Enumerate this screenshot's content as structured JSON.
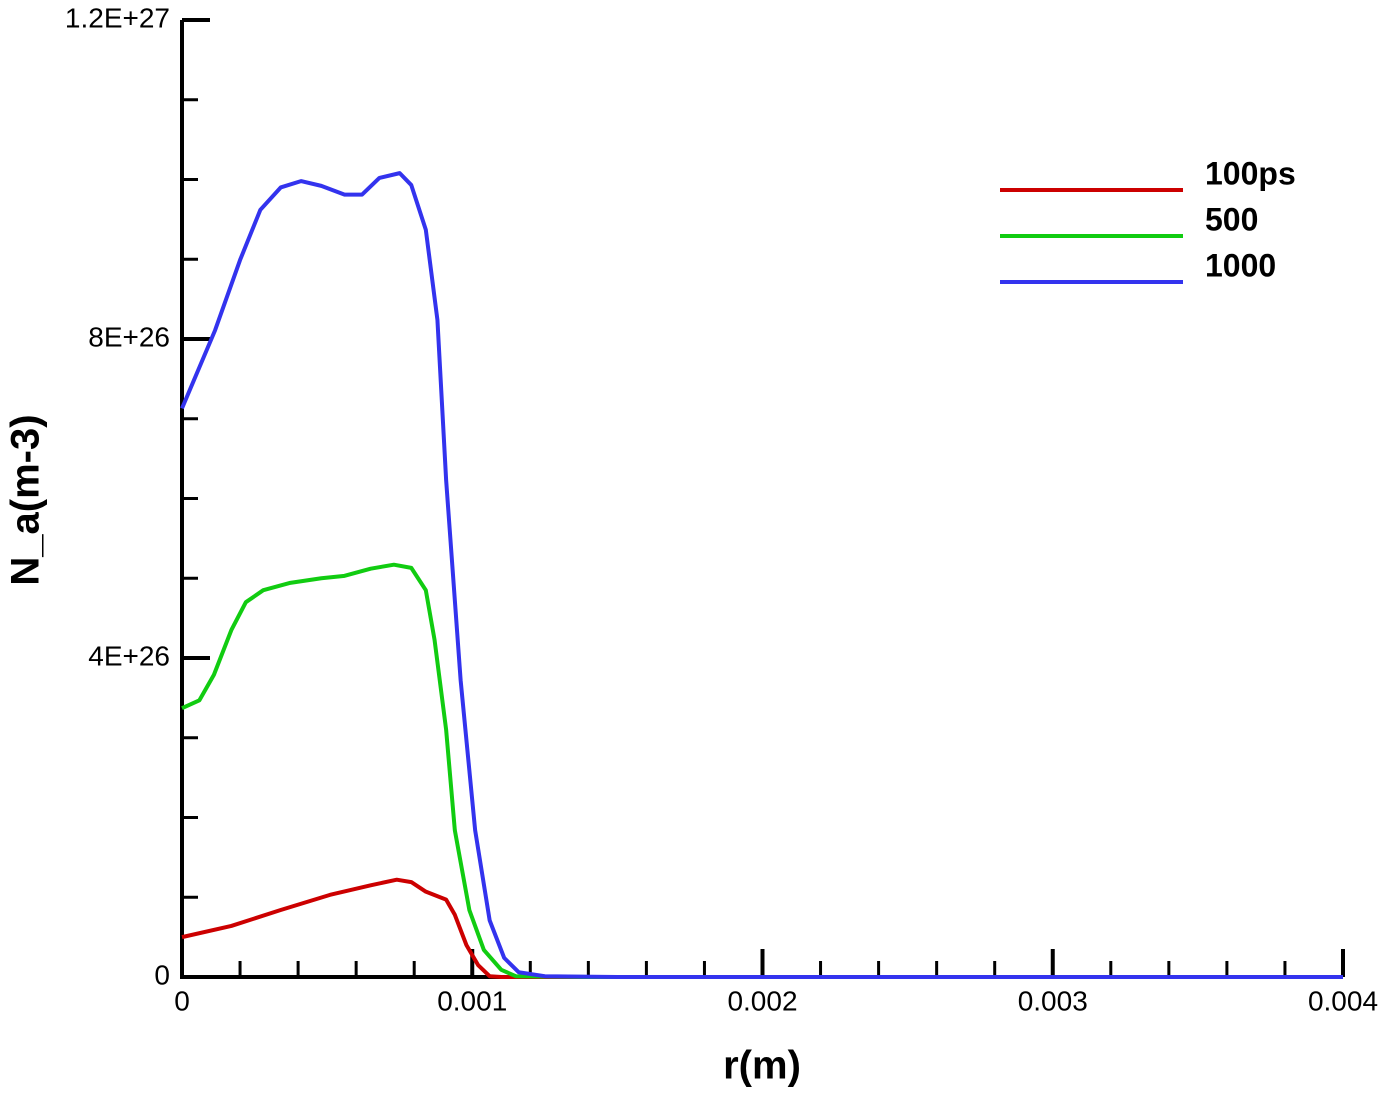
{
  "chart_data": {
    "type": "line",
    "xlabel": "r(m)",
    "ylabel": "N_a(m-3)",
    "xlim": [
      0,
      0.004
    ],
    "ylim": [
      0,
      1.2e+27
    ],
    "xticks": [
      0,
      0.001,
      0.002,
      0.003,
      0.004
    ],
    "xminorticks": [
      0.0002,
      0.0004,
      0.0006,
      0.0008,
      0.0012,
      0.0014,
      0.0016,
      0.0018,
      0.0022,
      0.0024,
      0.0026,
      0.0028,
      0.0032,
      0.0034,
      0.0036,
      0.0038
    ],
    "yticks": [
      {
        "value": 0,
        "label": "0"
      },
      {
        "value": 4e+26,
        "label": "4E+26"
      },
      {
        "value": 8e+26,
        "label": "8E+26"
      },
      {
        "value": 1.2e+27,
        "label": "1.2E+27"
      }
    ],
    "yminorticks": [
      1e+26,
      2e+26,
      3e+26,
      5e+26,
      6e+26,
      7e+26,
      9e+26,
      1e+27,
      1.1e+27
    ],
    "legend": "upper right",
    "series": [
      {
        "name": "100ps",
        "color": "#cc0000",
        "x": [
          0,
          0.00017,
          0.00034,
          0.00051,
          0.00065,
          0.00074,
          0.00079,
          0.00084,
          0.00091,
          0.00094,
          0.00098,
          0.00102,
          0.00106,
          0.0011,
          0.004
        ],
        "values": [
          5e+25,
          6.4e+25,
          8.4e+25,
          1.03e+26,
          1.15e+26,
          1.22e+26,
          1.19e+26,
          1.07e+26,
          9.7e+25,
          7.8e+25,
          4e+25,
          1.5e+25,
          1e+24,
          0,
          0
        ]
      },
      {
        "name": "500",
        "color": "#11cc11",
        "x": [
          0,
          6e-05,
          0.00011,
          0.00017,
          0.00022,
          0.00028,
          0.00037,
          0.00048,
          0.00056,
          0.00065,
          0.00073,
          0.00079,
          0.00084,
          0.00087,
          0.00091,
          0.00094,
          0.00099,
          0.00104,
          0.0011,
          0.00115,
          0.0014,
          0.004
        ],
        "values": [
          3.37e+26,
          3.47e+26,
          3.79e+26,
          4.35e+26,
          4.7e+26,
          4.85e+26,
          4.94e+26,
          5e+26,
          5.03e+26,
          5.12e+26,
          5.17e+26,
          5.13e+26,
          4.85e+26,
          4.23e+26,
          3.1e+26,
          1.84e+26,
          8.4e+25,
          3.4e+25,
          9e+24,
          1e+24,
          0,
          0
        ]
      },
      {
        "name": "1000",
        "color": "#3333ee",
        "x": [
          0,
          0.000114,
          0.0002,
          0.00027,
          0.00034,
          0.00041,
          0.00048,
          0.00056,
          0.00062,
          0.00068,
          0.00075,
          0.00079,
          0.00084,
          0.00088,
          0.00091,
          0.00096,
          0.00101,
          0.00106,
          0.00111,
          0.00116,
          0.00125,
          0.0015,
          0.004
        ],
        "values": [
          7.13e+26,
          8.11e+26,
          8.99e+26,
          9.62e+26,
          9.9e+26,
          9.98e+26,
          9.92e+26,
          9.81e+26,
          9.81e+26,
          1.002e+27,
          1.008e+27,
          9.93e+26,
          9.37e+26,
          8.24e+26,
          6.23e+26,
          3.72e+26,
          1.84e+26,
          7.1e+25,
          2.4e+25,
          6e+24,
          1e+24,
          0,
          0
        ]
      }
    ]
  }
}
